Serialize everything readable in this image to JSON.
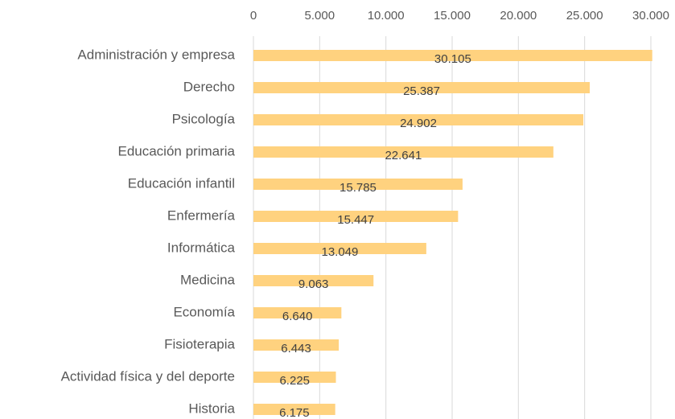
{
  "chart_data": {
    "type": "bar",
    "orientation": "horizontal",
    "categories": [
      "Administración y empresa",
      "Derecho",
      "Psicología",
      "Educación primaria",
      "Educación infantil",
      "Enfermería",
      "Informática",
      "Medicina",
      "Economía",
      "Fisioterapia",
      "Actividad física y del deporte",
      "Historia"
    ],
    "values": [
      30105,
      25387,
      24902,
      22641,
      15785,
      15447,
      13049,
      9063,
      6640,
      6443,
      6225,
      6175
    ],
    "value_labels": [
      "30.105",
      "25.387",
      "24.902",
      "22.641",
      "15.785",
      "15.447",
      "13.049",
      "9.063",
      "6.640",
      "6.443",
      "6.225",
      "6.175"
    ],
    "color": "#ffd27f",
    "xlim": [
      0,
      30000
    ],
    "xticks": [
      0,
      {
        "value": 5000,
        "label": "5.000"
      },
      {
        "value": 10000,
        "label": "10.000"
      },
      {
        "value": 15000,
        "label": "15.000"
      },
      {
        "value": 20000,
        "label": "20.000"
      },
      {
        "value": 25000,
        "label": "25.000"
      },
      {
        "value": 30000,
        "label": "30.000"
      }
    ],
    "grid": true
  }
}
